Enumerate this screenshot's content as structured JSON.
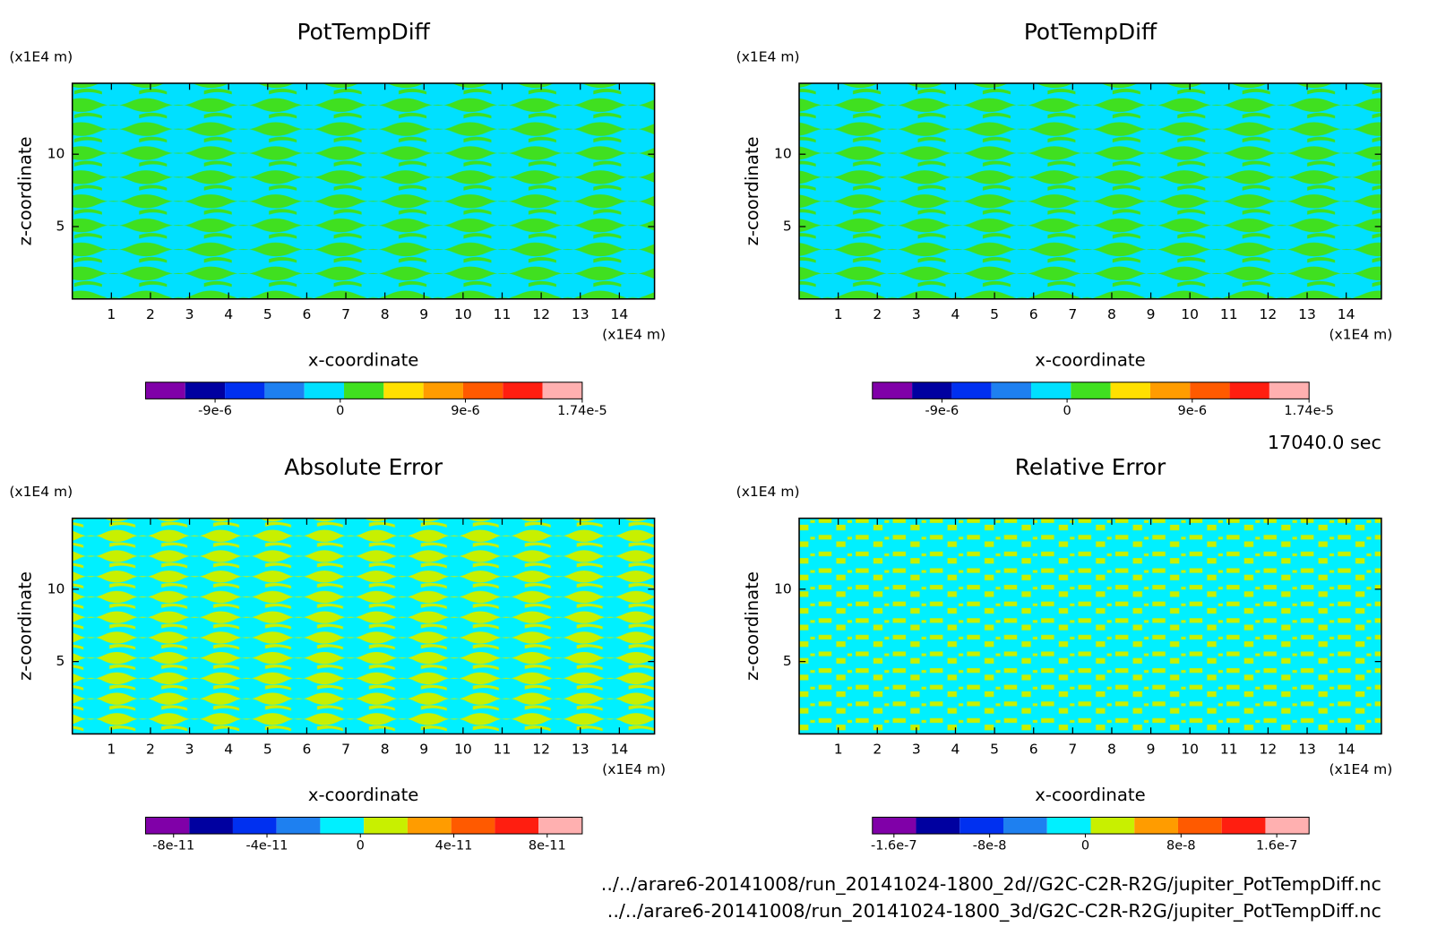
{
  "chart_data": [
    {
      "type": "contour",
      "title": "PotTempDiff",
      "x_label": "x-coordinate",
      "y_label": "z-coordinate",
      "x_unit": "(x1E4 m)",
      "y_unit": "(x1E4 m)",
      "xlim": [
        0,
        14.9
      ],
      "ylim": [
        0,
        14.9
      ],
      "xticks": [
        1,
        2,
        3,
        4,
        5,
        6,
        7,
        8,
        9,
        10,
        11,
        12,
        13,
        14
      ],
      "yticks": [
        5,
        10
      ],
      "colorbar": {
        "clim": [
          -1.4e-05,
          1.74e-05
        ],
        "colors": [
          "#8000a8",
          "#0000a0",
          "#0030f0",
          "#1e80f0",
          "#00e0ff",
          "#40e020",
          "#ffe000",
          "#ff9c00",
          "#ff5a00",
          "#ff1e10",
          "#ffb0b0"
        ],
        "ticks": [
          {
            "value": -9e-06,
            "label": "-9e-6"
          },
          0,
          {
            "value": 9e-06,
            "label": "9e-6"
          },
          {
            "value": 1.74e-05,
            "label": "1.74e-5"
          }
        ]
      }
    },
    {
      "type": "contour",
      "title": "PotTempDiff",
      "x_label": "x-coordinate",
      "y_label": "z-coordinate",
      "x_unit": "(x1E4 m)",
      "y_unit": "(x1E4 m)",
      "xlim": [
        0,
        14.9
      ],
      "ylim": [
        0,
        14.9
      ],
      "xticks": [
        1,
        2,
        3,
        4,
        5,
        6,
        7,
        8,
        9,
        10,
        11,
        12,
        13,
        14
      ],
      "yticks": [
        5,
        10
      ],
      "colorbar": {
        "clim": [
          -1.4e-05,
          1.74e-05
        ],
        "colors": [
          "#8000a8",
          "#0000a0",
          "#0030f0",
          "#1e80f0",
          "#00e0ff",
          "#40e020",
          "#ffe000",
          "#ff9c00",
          "#ff5a00",
          "#ff1e10",
          "#ffb0b0"
        ],
        "ticks": [
          {
            "value": -9e-06,
            "label": "-9e-6"
          },
          0,
          {
            "value": 9e-06,
            "label": "9e-6"
          },
          {
            "value": 1.74e-05,
            "label": "1.74e-5"
          }
        ]
      }
    },
    {
      "type": "contour",
      "title": "Absolute Error",
      "x_label": "x-coordinate",
      "y_label": "z-coordinate",
      "x_unit": "(x1E4 m)",
      "y_unit": "(x1E4 m)",
      "xlim": [
        0,
        14.9
      ],
      "ylim": [
        0,
        14.9
      ],
      "xticks": [
        1,
        2,
        3,
        4,
        5,
        6,
        7,
        8,
        9,
        10,
        11,
        12,
        13,
        14
      ],
      "yticks": [
        5,
        10
      ],
      "colorbar": {
        "clim": [
          -9.2e-11,
          9.5e-11
        ],
        "colors": [
          "#8000a8",
          "#0000a0",
          "#0030f0",
          "#1e80f0",
          "#00f0ff",
          "#c8f000",
          "#ff9c00",
          "#ff5a00",
          "#ff1e10",
          "#ffb0b0"
        ],
        "ticks": [
          {
            "value": -8e-11,
            "label": "-8e-11"
          },
          {
            "value": -4e-11,
            "label": "-4e-11"
          },
          0,
          {
            "value": 4e-11,
            "label": "4e-11"
          },
          {
            "value": 8e-11,
            "label": "8e-11"
          }
        ]
      }
    },
    {
      "type": "contour",
      "title": "Relative Error",
      "x_label": "x-coordinate",
      "y_label": "z-coordinate",
      "x_unit": "(x1E4 m)",
      "y_unit": "(x1E4 m)",
      "xlim": [
        0,
        14.9
      ],
      "ylim": [
        0,
        14.9
      ],
      "xticks": [
        1,
        2,
        3,
        4,
        5,
        6,
        7,
        8,
        9,
        10,
        11,
        12,
        13,
        14
      ],
      "yticks": [
        5,
        10
      ],
      "colorbar": {
        "clim": [
          -1.78e-07,
          1.87e-07
        ],
        "colors": [
          "#8000a8",
          "#0000a0",
          "#0030f0",
          "#1e80f0",
          "#00f0ff",
          "#c8f000",
          "#ff9c00",
          "#ff5a00",
          "#ff1e10",
          "#ffb0b0"
        ],
        "ticks": [
          {
            "value": -1.6e-07,
            "label": "-1.6e-7"
          },
          {
            "value": -8e-08,
            "label": "-8e-8"
          },
          0,
          {
            "value": 8e-08,
            "label": "8e-8"
          },
          {
            "value": 1.6e-07,
            "label": "1.6e-7"
          }
        ]
      }
    }
  ],
  "notes": {
    "time": "17040.0 sec",
    "files": [
      "../../arare6-20141008/run_20141024-1800_2d//G2C-C2R-R2G/jupiter_PotTempDiff.nc",
      "../../arare6-20141008/run_20141024-1800_3d/G2C-C2R-R2G/jupiter_PotTempDiff.nc"
    ]
  }
}
